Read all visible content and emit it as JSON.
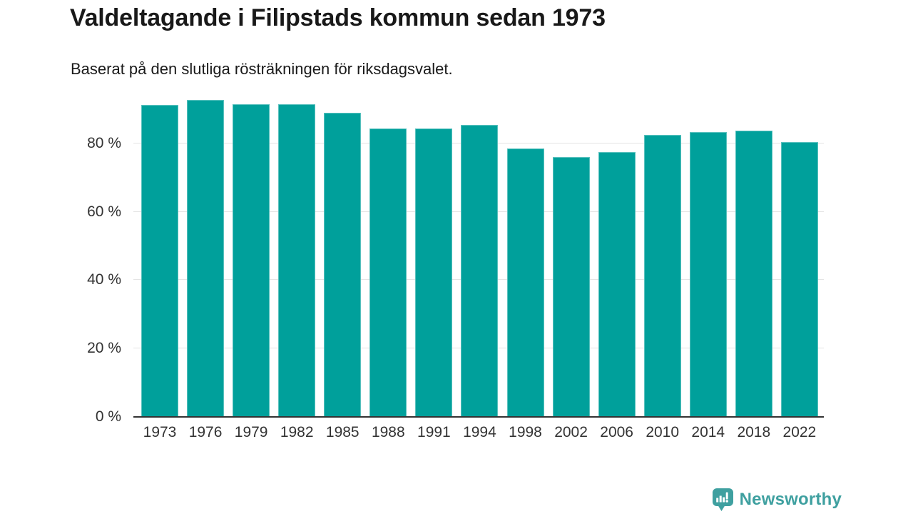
{
  "header": {
    "title": "Valdeltagande i Filipstads kommun sedan 1973",
    "subtitle": "Baserat på den slutliga rösträkningen för riksdagsvalet."
  },
  "chart_data": {
    "type": "bar",
    "title": "Valdeltagande i Filipstads kommun sedan 1973",
    "subtitle": "Baserat på den slutliga rösträkningen för riksdagsvalet.",
    "categories": [
      "1973",
      "1976",
      "1979",
      "1982",
      "1985",
      "1988",
      "1991",
      "1994",
      "1998",
      "2002",
      "2006",
      "2010",
      "2014",
      "2018",
      "2022"
    ],
    "values": [
      91.3,
      92.7,
      91.5,
      91.5,
      89.0,
      84.4,
      84.4,
      85.3,
      78.4,
      76.0,
      77.4,
      82.5,
      83.3,
      83.8,
      80.4
    ],
    "unit": "%",
    "xlabel": "",
    "ylabel": "",
    "ylim": [
      0,
      100
    ],
    "yticks": [
      0,
      20,
      40,
      60,
      80
    ],
    "ytick_suffix": " %",
    "grid": true,
    "legend_position": "none",
    "bar_color": "#00a09b",
    "gridline_color": "#e4e4e4",
    "axis_color": "#333333"
  },
  "branding": {
    "logo_text": "Newsworthy",
    "logo_color": "#3fa0a0",
    "logo_icon": "newsworthy-speech-bubble-chart-icon"
  }
}
